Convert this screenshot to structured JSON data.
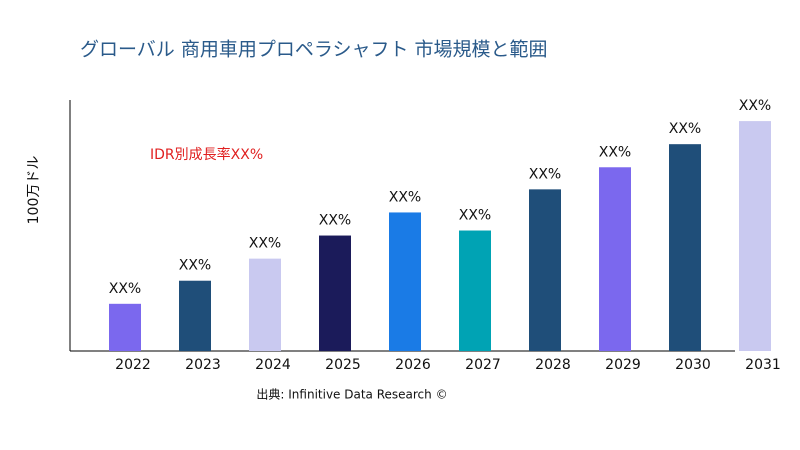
{
  "chart_data": {
    "type": "bar",
    "title": "グローバル 商用車用プロペラシャフト 市場規模と範囲",
    "y_label": "100万ドル",
    "annotation": "IDR別成長率XX%",
    "source": "出典: Infinitive Data Research ©",
    "categories": [
      "2022",
      "2023",
      "2024",
      "2025",
      "2026",
      "2027",
      "2028",
      "2029",
      "2030",
      "2031"
    ],
    "values": [
      47,
      70,
      92,
      115,
      138,
      120,
      161,
      183,
      206,
      229
    ],
    "value_labels": [
      "XX%",
      "XX%",
      "XX%",
      "XX%",
      "XX%",
      "XX%",
      "XX%",
      "XX%",
      "XX%",
      "XX%"
    ],
    "colors": [
      "#7b68ee",
      "#1f4e79",
      "#c9c9f0",
      "#1b1b5a",
      "#1a7be6",
      "#00a3b4",
      "#1f4e79",
      "#7b68ee",
      "#1f4e79",
      "#c9c9f0"
    ],
    "ylim": [
      0,
      250
    ]
  }
}
